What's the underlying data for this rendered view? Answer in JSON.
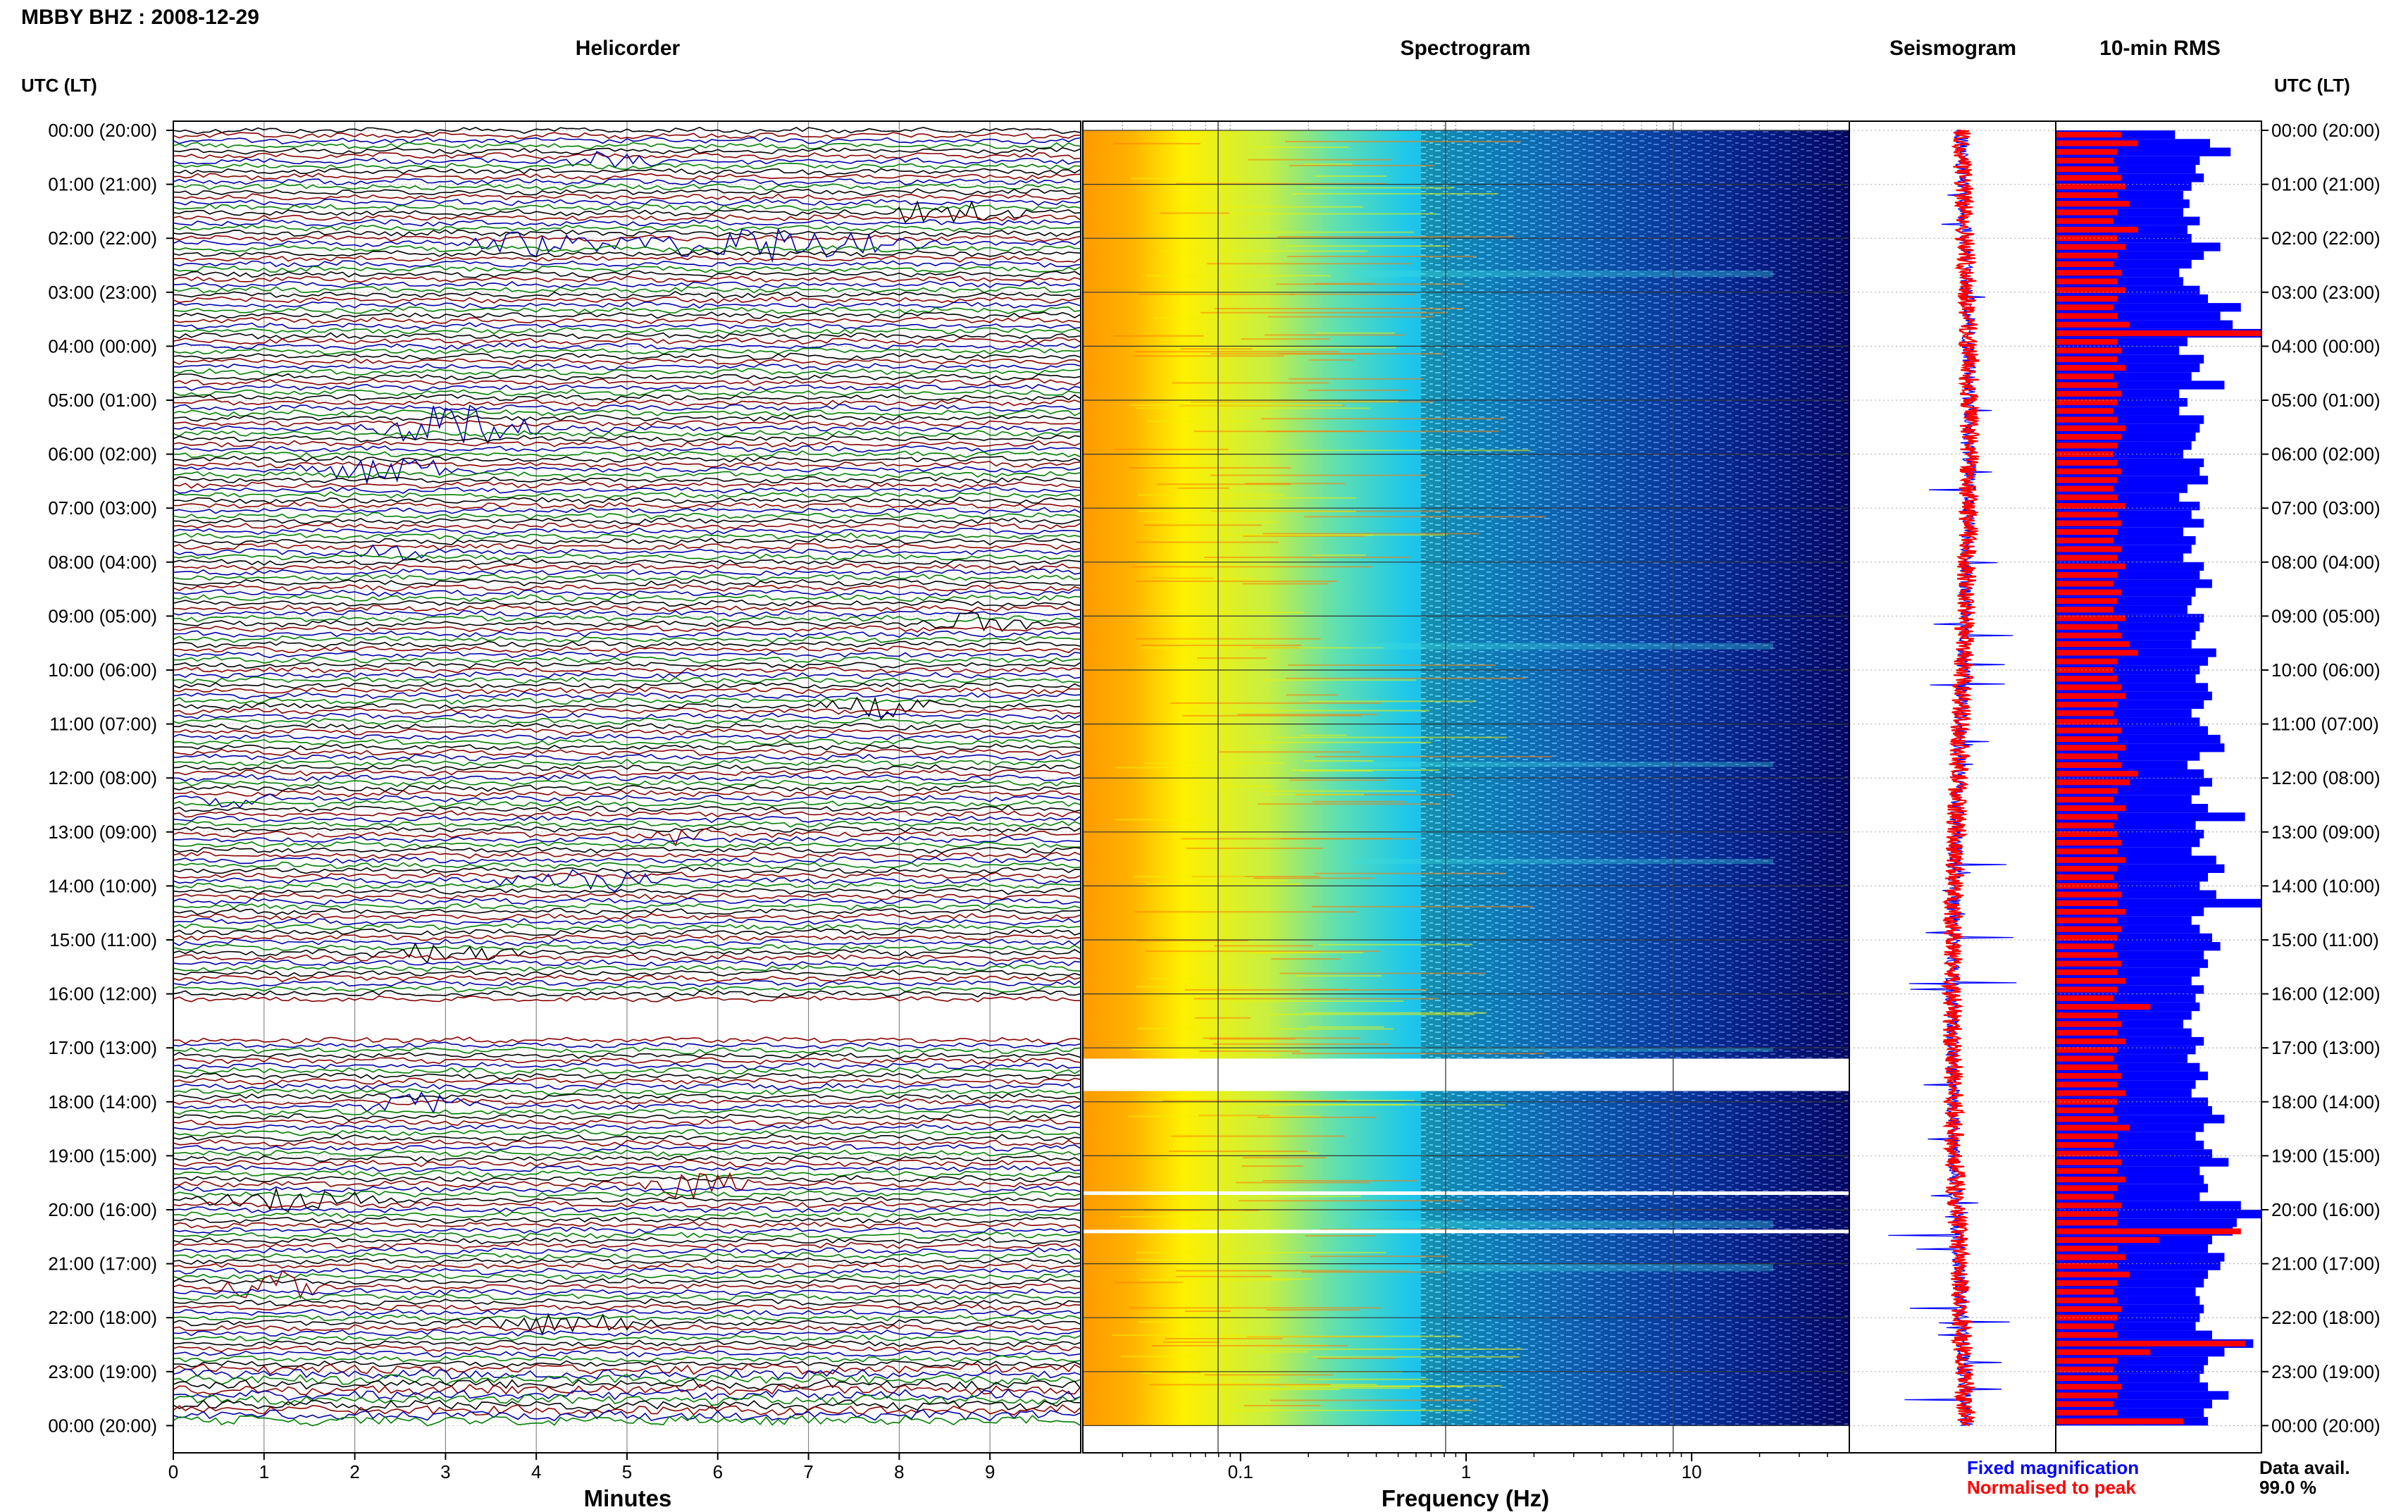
{
  "title": "MBBY BHZ : 2008-12-29",
  "panels": {
    "helicorder": "Helicorder",
    "spectrogram": "Spectrogram",
    "seismogram": "Seismogram",
    "rms": "10-min RMS"
  },
  "utc_label_left": "UTC (LT)",
  "utc_label_right": "UTC (LT)",
  "xlabel_minutes": "Minutes",
  "xlabel_frequency": "Frequency (Hz)",
  "legend": {
    "fixed": "Fixed magnification",
    "normalised": "Normalised to peak",
    "fixed_color": "#0000ff",
    "normalised_color": "#ff0000"
  },
  "data_avail_label": "Data avail.",
  "data_avail_value": "99.0 %",
  "colors": {
    "helicorder_traces": [
      "#000000",
      "#8b0000",
      "#0000aa",
      "#008000"
    ],
    "rms_fixed": "#0000ff",
    "rms_normalised": "#ff0000"
  },
  "chart_data": {
    "type": "heatmap",
    "time_labels": [
      "00:00 (20:00)",
      "01:00 (21:00)",
      "02:00 (22:00)",
      "03:00 (23:00)",
      "04:00 (00:00)",
      "05:00 (01:00)",
      "06:00 (02:00)",
      "07:00 (03:00)",
      "08:00 (04:00)",
      "09:00 (05:00)",
      "10:00 (06:00)",
      "11:00 (07:00)",
      "12:00 (08:00)",
      "13:00 (09:00)",
      "14:00 (10:00)",
      "15:00 (11:00)",
      "16:00 (12:00)",
      "17:00 (13:00)",
      "18:00 (14:00)",
      "19:00 (15:00)",
      "20:00 (16:00)",
      "21:00 (17:00)",
      "22:00 (18:00)",
      "23:00 (19:00)",
      "00:00 (20:00)"
    ],
    "minutes_ticks": [
      "0",
      "1",
      "2",
      "3",
      "4",
      "5",
      "6",
      "7",
      "8",
      "9"
    ],
    "minutes_range": [
      0,
      10
    ],
    "frequency_ticks": [
      "0.1",
      "1",
      "10"
    ],
    "frequency_scale": "log",
    "frequency_range_hz": [
      0.02,
      50
    ],
    "spectrogram_data_gap_utc": [
      "17:12",
      "17:48"
    ],
    "rms_fixed_relative": [
      0.58,
      0.75,
      0.85,
      0.7,
      0.68,
      0.72,
      0.66,
      0.62,
      0.65,
      0.62,
      0.7,
      0.64,
      0.66,
      0.8,
      0.72,
      0.66,
      0.6,
      0.62,
      0.7,
      0.74,
      0.9,
      0.8,
      0.86,
      1.0,
      0.64,
      0.6,
      0.72,
      0.7,
      0.66,
      0.82,
      0.6,
      0.64,
      0.6,
      0.72,
      0.7,
      0.68,
      0.66,
      0.62,
      0.72,
      0.7,
      0.74,
      0.64,
      0.6,
      0.7,
      0.66,
      0.72,
      0.62,
      0.68,
      0.66,
      0.62,
      0.72,
      0.7,
      0.76,
      0.68,
      0.66,
      0.64,
      0.72,
      0.7,
      0.68,
      0.66,
      0.78,
      0.74,
      0.7,
      0.68,
      0.74,
      0.76,
      0.72,
      0.66,
      0.7,
      0.74,
      0.8,
      0.82,
      0.7,
      0.64,
      0.72,
      0.76,
      0.7,
      0.66,
      0.74,
      0.92,
      0.68,
      0.72,
      0.7,
      0.66,
      0.78,
      0.82,
      0.74,
      0.7,
      0.78,
      1.0,
      0.72,
      0.66,
      0.7,
      0.76,
      0.8,
      0.72,
      0.74,
      0.7,
      0.66,
      0.72,
      0.68,
      0.7,
      0.66,
      0.62,
      0.66,
      0.72,
      0.68,
      0.64,
      0.7,
      0.74,
      0.68,
      0.66,
      0.74,
      0.76,
      0.82,
      0.72,
      0.68,
      0.72,
      0.76,
      0.84,
      0.7,
      0.72,
      0.74,
      0.7,
      0.9,
      1.0,
      0.88,
      0.86,
      0.76,
      0.74,
      0.82,
      0.8,
      0.74,
      0.72,
      0.68,
      0.7,
      0.72,
      0.7,
      0.68,
      0.76,
      0.96,
      0.82,
      0.74,
      0.72,
      0.7,
      0.74,
      0.84,
      0.76,
      0.72,
      0.74
    ],
    "rms_normalised_relative": [
      0.32,
      0.4,
      0.3,
      0.28,
      0.3,
      0.32,
      0.34,
      0.3,
      0.36,
      0.3,
      0.28,
      0.4,
      0.3,
      0.34,
      0.3,
      0.28,
      0.32,
      0.3,
      0.34,
      0.3,
      0.28,
      0.3,
      0.36,
      1.0,
      0.3,
      0.32,
      0.3,
      0.34,
      0.28,
      0.3,
      0.32,
      0.3,
      0.28,
      0.3,
      0.34,
      0.32,
      0.3,
      0.28,
      0.3,
      0.32,
      0.3,
      0.28,
      0.3,
      0.34,
      0.3,
      0.32,
      0.3,
      0.28,
      0.32,
      0.3,
      0.34,
      0.3,
      0.28,
      0.32,
      0.3,
      0.28,
      0.34,
      0.3,
      0.32,
      0.36,
      0.4,
      0.3,
      0.28,
      0.3,
      0.32,
      0.34,
      0.3,
      0.28,
      0.3,
      0.32,
      0.3,
      0.34,
      0.3,
      0.32,
      0.4,
      0.36,
      0.3,
      0.28,
      0.34,
      0.3,
      0.28,
      0.3,
      0.32,
      0.3,
      0.34,
      0.3,
      0.28,
      0.3,
      0.32,
      0.3,
      0.34,
      0.3,
      0.32,
      0.3,
      0.28,
      0.3,
      0.32,
      0.3,
      0.34,
      0.3,
      0.28,
      0.46,
      0.3,
      0.32,
      0.3,
      0.34,
      0.3,
      0.28,
      0.3,
      0.32,
      0.3,
      0.34,
      0.3,
      0.28,
      0.3,
      0.36,
      0.3,
      0.28,
      0.3,
      0.32,
      0.3,
      0.34,
      0.3,
      0.28,
      0.32,
      0.3,
      0.3,
      0.9,
      0.5,
      0.3,
      0.34,
      0.3,
      0.36,
      0.3,
      0.28,
      0.3,
      0.32,
      0.3,
      0.28,
      0.3,
      0.92,
      0.46,
      0.3,
      0.28,
      0.3,
      0.32,
      0.3,
      0.28,
      0.3,
      0.62
    ]
  }
}
